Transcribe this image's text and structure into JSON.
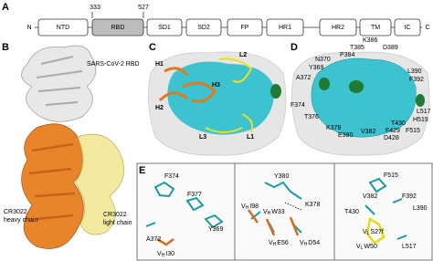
{
  "panel_a": {
    "label": "A",
    "n_term": "N",
    "c_term": "C",
    "residue_start": 333,
    "residue_end": 527,
    "domains": [
      "NTD",
      "RBD",
      "SD1",
      "SD2",
      "FP",
      "HR1",
      "HR2",
      "TM",
      "IC"
    ]
  },
  "panel_b": {
    "label": "B",
    "rbd": "SARS-CoV-2 RBD",
    "heavy": [
      "CR3022",
      "heavy chain"
    ],
    "light": [
      "CR3022",
      "light chain"
    ]
  },
  "panel_c": {
    "label": "C",
    "loops": [
      "H1",
      "L2",
      "H3",
      "H2",
      "L3",
      "L1"
    ]
  },
  "panel_d": {
    "label": "D",
    "residues": [
      "N370",
      "P384",
      "T385",
      "K386",
      "D389",
      "Y369",
      "A372",
      "L390",
      "F392",
      "F374",
      "T376",
      "K378",
      "E380",
      "V382",
      "T430",
      "F429",
      "D428",
      "F515",
      "L517",
      "H519"
    ]
  },
  "panel_e": {
    "label": "E",
    "left": [
      "F374",
      "F377",
      "A372",
      "Y369",
      {
        "prefix": "V",
        "sub": "H",
        "text": "I30"
      }
    ],
    "middle": [
      "Y380",
      "K378",
      {
        "prefix": "V",
        "sub": "H",
        "text": "I98"
      },
      {
        "prefix": "V",
        "sub": "H",
        "text": "W33"
      },
      {
        "prefix": "V",
        "sub": "H",
        "text": "E56"
      },
      {
        "prefix": "V",
        "sub": "H",
        "text": "D54"
      }
    ],
    "right": [
      "F515",
      "V382",
      "F392",
      "T430",
      "L390",
      {
        "prefix": "V",
        "sub": "L",
        "text": "S27f"
      },
      {
        "prefix": "V",
        "sub": "L",
        "text": "W50"
      },
      "L517"
    ]
  }
}
